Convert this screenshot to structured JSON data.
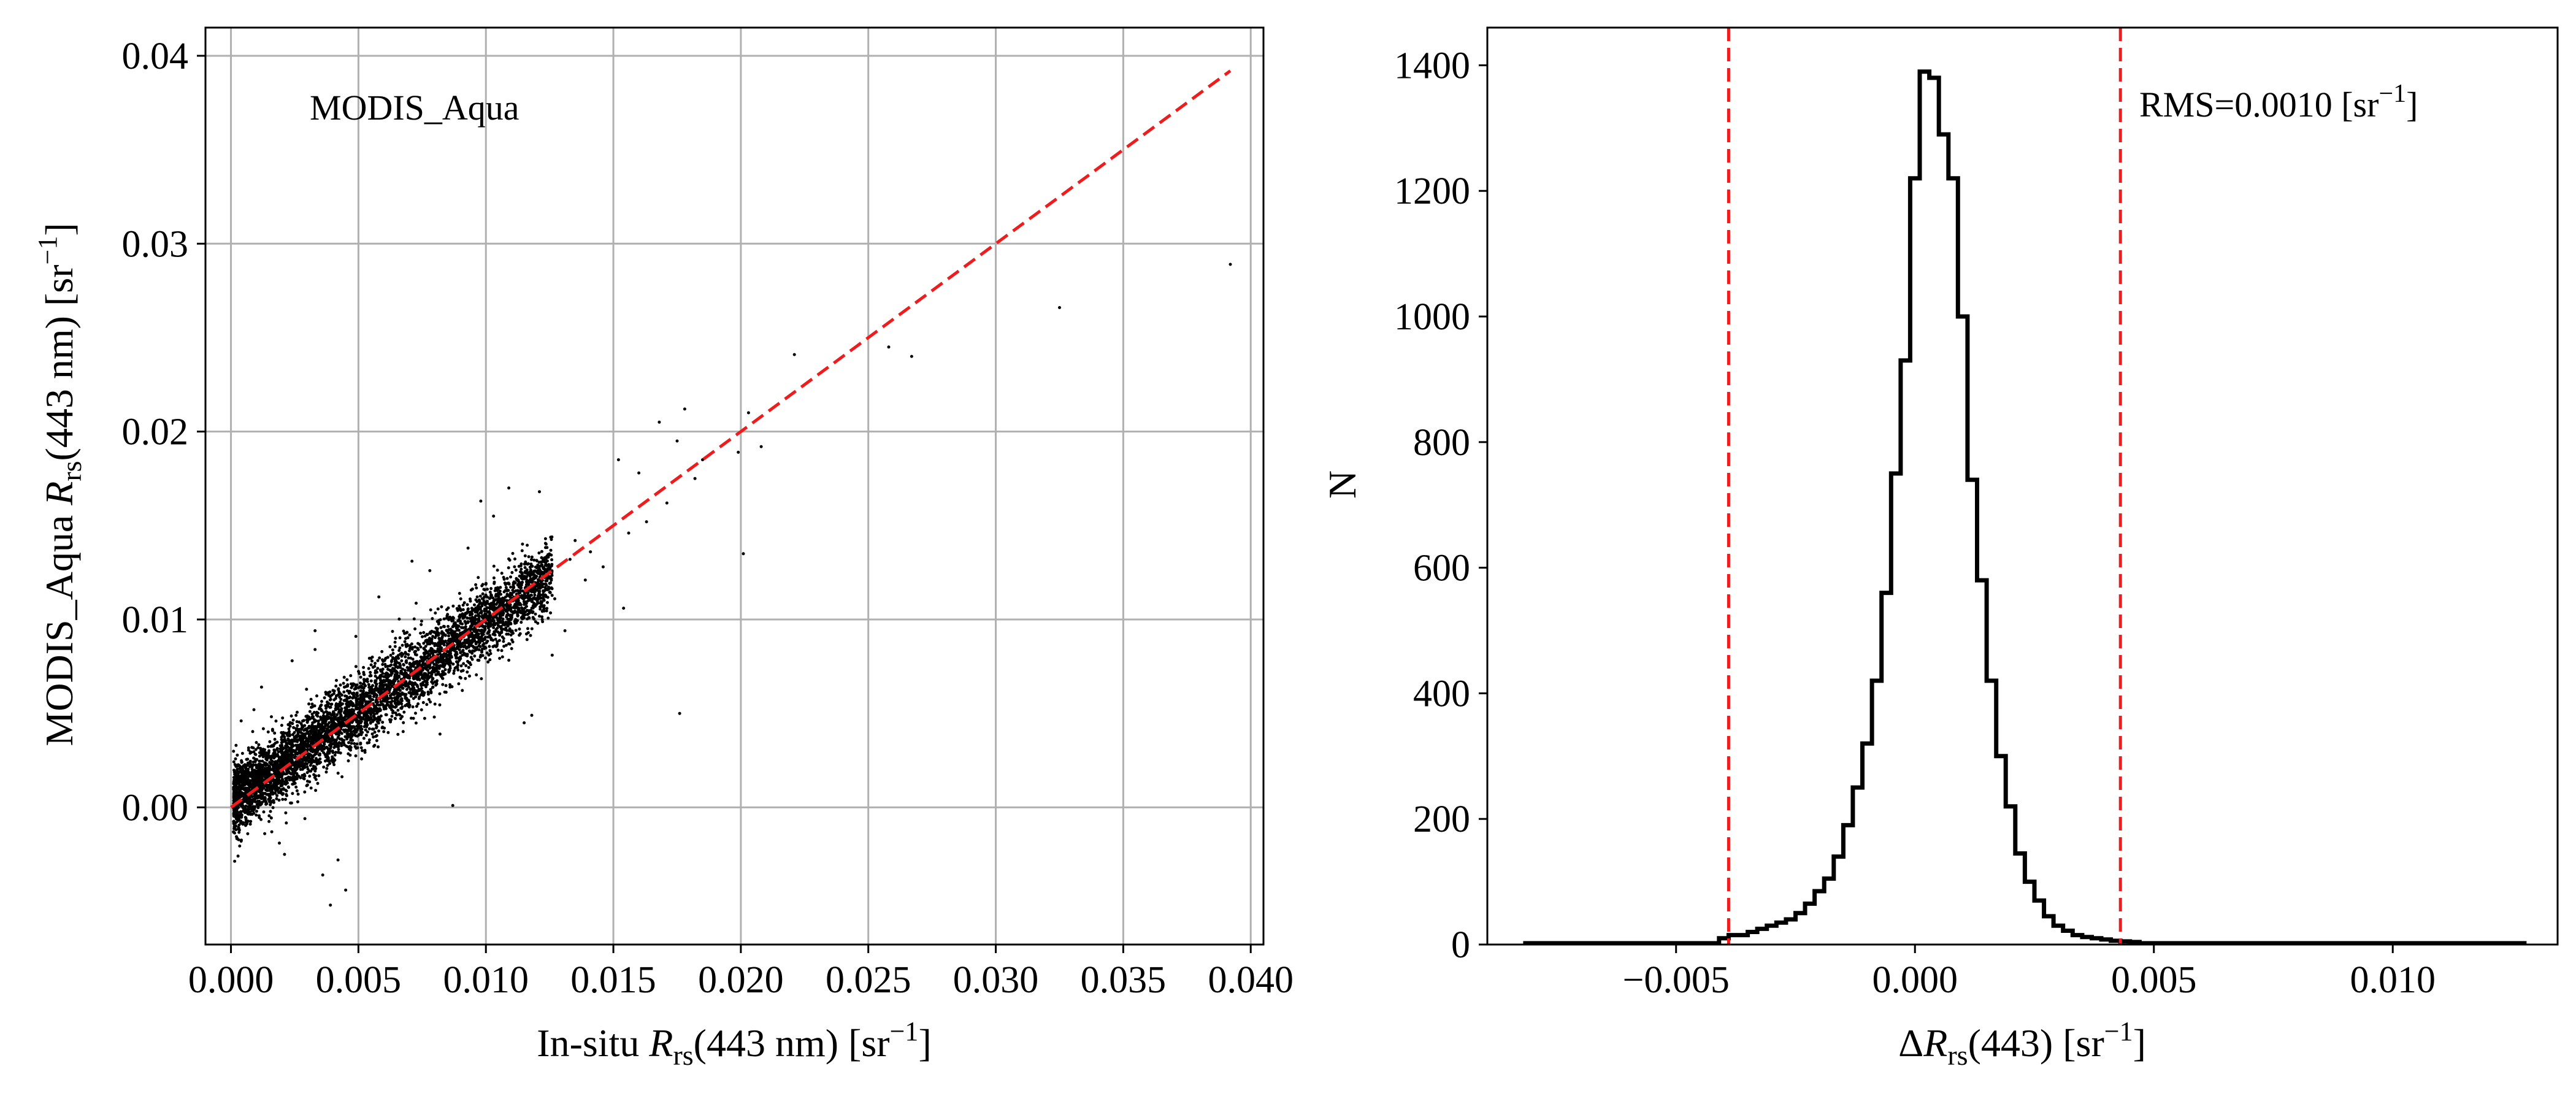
{
  "chart_data": [
    {
      "type": "scatter",
      "annotation": "MODIS_Aqua",
      "xlabel": "In-situ R_rs(443 nm) [sr^-1]",
      "xlabel_parts": {
        "pre": "In-situ ",
        "var": "R",
        "sub": "rs",
        "post": "(443 nm) [sr",
        "sup": "−1",
        "end": "]"
      },
      "ylabel": "MODIS_Aqua R_rs(443 nm) [sr^-1]",
      "ylabel_parts": {
        "pre": "MODIS_Aqua ",
        "var": "R",
        "sub": "rs",
        "post": "(443 nm) [sr",
        "sup": "−1",
        "end": "]"
      },
      "xlim": [
        -0.001,
        0.0405
      ],
      "ylim": [
        -0.0073,
        0.0415
      ],
      "xticks": [
        0.0,
        0.005,
        0.01,
        0.015,
        0.02,
        0.025,
        0.03,
        0.035,
        0.04
      ],
      "xtick_labels": [
        "0.000",
        "0.005",
        "0.010",
        "0.015",
        "0.020",
        "0.025",
        "0.030",
        "0.035",
        "0.040"
      ],
      "yticks": [
        0.0,
        0.01,
        0.02,
        0.03,
        0.04
      ],
      "ytick_labels": [
        "0.00",
        "0.01",
        "0.02",
        "0.03",
        "0.04"
      ],
      "grid": true,
      "reference_line": {
        "x": [
          0.0,
          0.0392
        ],
        "y": [
          0.0,
          0.0392
        ],
        "color": "#ee1c1c",
        "style": "dashed"
      },
      "point_color": "#000000",
      "points": [
        [
          0.0392,
          0.0289
        ],
        [
          0.0325,
          0.0266
        ],
        [
          0.0267,
          0.024
        ],
        [
          0.0258,
          0.0245
        ],
        [
          0.0221,
          0.0241
        ],
        [
          0.0203,
          0.021
        ],
        [
          0.0208,
          0.0192
        ],
        [
          0.0199,
          0.0189
        ],
        [
          0.0178,
          0.0212
        ],
        [
          0.0168,
          0.0205
        ],
        [
          0.0175,
          0.0195
        ],
        [
          0.0185,
          0.0185
        ],
        [
          0.0182,
          0.0175
        ],
        [
          0.016,
          0.0178
        ],
        [
          0.0152,
          0.0185
        ],
        [
          0.0171,
          0.0162
        ],
        [
          0.0163,
          0.0152
        ],
        [
          0.0156,
          0.0146
        ],
        [
          0.0148,
          0.0148
        ],
        [
          0.0201,
          0.0135
        ],
        [
          0.0176,
          0.005
        ],
        [
          0.0154,
          0.0106
        ],
        [
          0.0141,
          0.0136
        ],
        [
          0.0135,
          0.0142
        ],
        [
          0.0121,
          0.0168
        ],
        [
          0.0109,
          0.017
        ],
        [
          0.0098,
          0.0163
        ],
        [
          0.0103,
          0.0155
        ],
        [
          0.0093,
          0.0138
        ],
        [
          0.0078,
          0.0126
        ],
        [
          0.0071,
          0.0131
        ],
        [
          0.0058,
          0.0112
        ],
        [
          0.0049,
          0.0091
        ],
        [
          0.0033,
          0.0094
        ],
        [
          0.0033,
          0.0084
        ],
        [
          0.0024,
          0.0078
        ],
        [
          0.0012,
          0.0064
        ],
        [
          0.0009,
          0.0052
        ],
        [
          0.0004,
          0.0046
        ],
        [
          0.0002,
          0.0033
        ],
        [
          0.0016,
          -0.0013
        ],
        [
          0.0021,
          -0.0025
        ],
        [
          0.0036,
          -0.0036
        ],
        [
          0.0039,
          -0.0052
        ],
        [
          0.0042,
          -0.0028
        ],
        [
          0.0045,
          -0.0044
        ],
        [
          0.0029,
          -0.0006
        ],
        [
          0.0019,
          -0.0019
        ],
        [
          0.0001,
          -0.0013
        ],
        [
          0.0004,
          -0.0018
        ],
        [
          0.0118,
          0.0049
        ],
        [
          0.0115,
          0.0045
        ],
        [
          0.0082,
          0.0039
        ],
        [
          0.0087,
          0.0001
        ],
        [
          0.0126,
          0.0081
        ],
        [
          0.0131,
          0.0094
        ],
        [
          0.0139,
          0.0121
        ],
        [
          0.0146,
          0.0128
        ],
        [
          0.0133,
          0.0132
        ],
        [
          0.0127,
          0.0111
        ]
      ]
    },
    {
      "type": "histogram",
      "annotation": "RMS=0.0010 [sr^-1]",
      "annotation_parts": {
        "pre": "RMS=0.0010 [sr",
        "sup": "−1",
        "end": "]"
      },
      "xlabel": "ΔR_rs(443) [sr^-1]",
      "xlabel_parts": {
        "pre": "Δ",
        "var": "R",
        "sub": "rs",
        "post": "(443) [sr",
        "sup": "−1",
        "end": "]"
      },
      "ylabel": "N",
      "xlim": [
        -0.00895,
        0.01345
      ],
      "ylim": [
        0,
        1460
      ],
      "xticks": [
        -0.005,
        0.0,
        0.005,
        0.01
      ],
      "xtick_labels": [
        "−0.005",
        "0.000",
        "0.005",
        "0.010"
      ],
      "yticks": [
        0,
        200,
        400,
        600,
        800,
        1000,
        1200,
        1400
      ],
      "ytick_labels": [
        "0",
        "200",
        "400",
        "600",
        "800",
        "1000",
        "1200",
        "1400"
      ],
      "grid": false,
      "vlines": [
        -0.0039,
        0.0043
      ],
      "vline_color": "#ee1c1c",
      "bin_edges": [
        -0.0041,
        -0.0039,
        -0.0037,
        -0.0035,
        -0.0033,
        -0.0031,
        -0.0029,
        -0.0027,
        -0.0025,
        -0.0023,
        -0.0021,
        -0.0019,
        -0.0017,
        -0.0015,
        -0.0013,
        -0.0011,
        -0.0009,
        -0.0007,
        -0.0005,
        -0.0003,
        -0.0001,
        0.0001,
        0.0003,
        0.0005,
        0.0007,
        0.0009,
        0.0011,
        0.0013,
        0.0015,
        0.0017,
        0.0019,
        0.0021,
        0.0023,
        0.0025,
        0.0027,
        0.0029,
        0.0031,
        0.0033,
        0.0035,
        0.0037,
        0.0039,
        0.0041,
        0.0043,
        0.0045,
        0.0047
      ],
      "counts": [
        10,
        15,
        15,
        20,
        25,
        30,
        35,
        40,
        50,
        65,
        85,
        105,
        140,
        190,
        250,
        320,
        420,
        560,
        750,
        930,
        1220,
        1390,
        1380,
        1290,
        1220,
        1000,
        740,
        580,
        420,
        300,
        220,
        145,
        100,
        70,
        45,
        30,
        22,
        15,
        12,
        10,
        8,
        6,
        5,
        4
      ],
      "line_color": "#000000"
    }
  ]
}
